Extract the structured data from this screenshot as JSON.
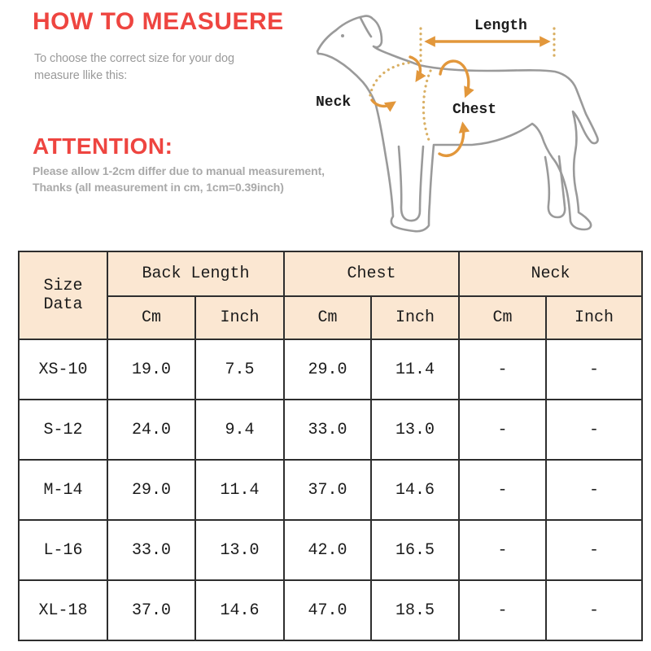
{
  "colors": {
    "accent_red": "#ee4540",
    "gray_text": "#9a9a9a",
    "table_header_bg": "#fbe7d2",
    "table_border": "#2e2e2e",
    "annotation_orange": "#e2973b",
    "annotation_dotted": "#d9af63",
    "dog_outline": "#9a9a9a"
  },
  "how_to": {
    "title": "HOW TO MEASUERE",
    "subtitle_line1": "To choose the correct size for your dog",
    "subtitle_line2": "measure llike this:"
  },
  "attention": {
    "title": "ATTENTION:",
    "note_line1": "Please allow 1-2cm differ due to manual measurement,",
    "note_line2": "Thanks (all measurement in cm, 1cm=0.39inch)"
  },
  "diagram": {
    "length_label": "Length",
    "neck_label": "Neck",
    "chest_label": "Chest"
  },
  "size_table": {
    "corner_label": "Size Data",
    "groups": [
      {
        "label": "Back Length"
      },
      {
        "label": "Chest"
      },
      {
        "label": "Neck"
      }
    ],
    "unit_headers": [
      "Cm",
      "Inch",
      "Cm",
      "Inch",
      "Cm",
      "Inch"
    ],
    "rows": [
      {
        "size": "XS-10",
        "values": [
          "19.0",
          "7.5",
          "29.0",
          "11.4",
          "-",
          "-"
        ]
      },
      {
        "size": "S-12",
        "values": [
          "24.0",
          "9.4",
          "33.0",
          "13.0",
          "-",
          "-"
        ]
      },
      {
        "size": "M-14",
        "values": [
          "29.0",
          "11.4",
          "37.0",
          "14.6",
          "-",
          "-"
        ]
      },
      {
        "size": "L-16",
        "values": [
          "33.0",
          "13.0",
          "42.0",
          "16.5",
          "-",
          "-"
        ]
      },
      {
        "size": "XL-18",
        "values": [
          "37.0",
          "14.6",
          "47.0",
          "18.5",
          "-",
          "-"
        ]
      }
    ]
  }
}
